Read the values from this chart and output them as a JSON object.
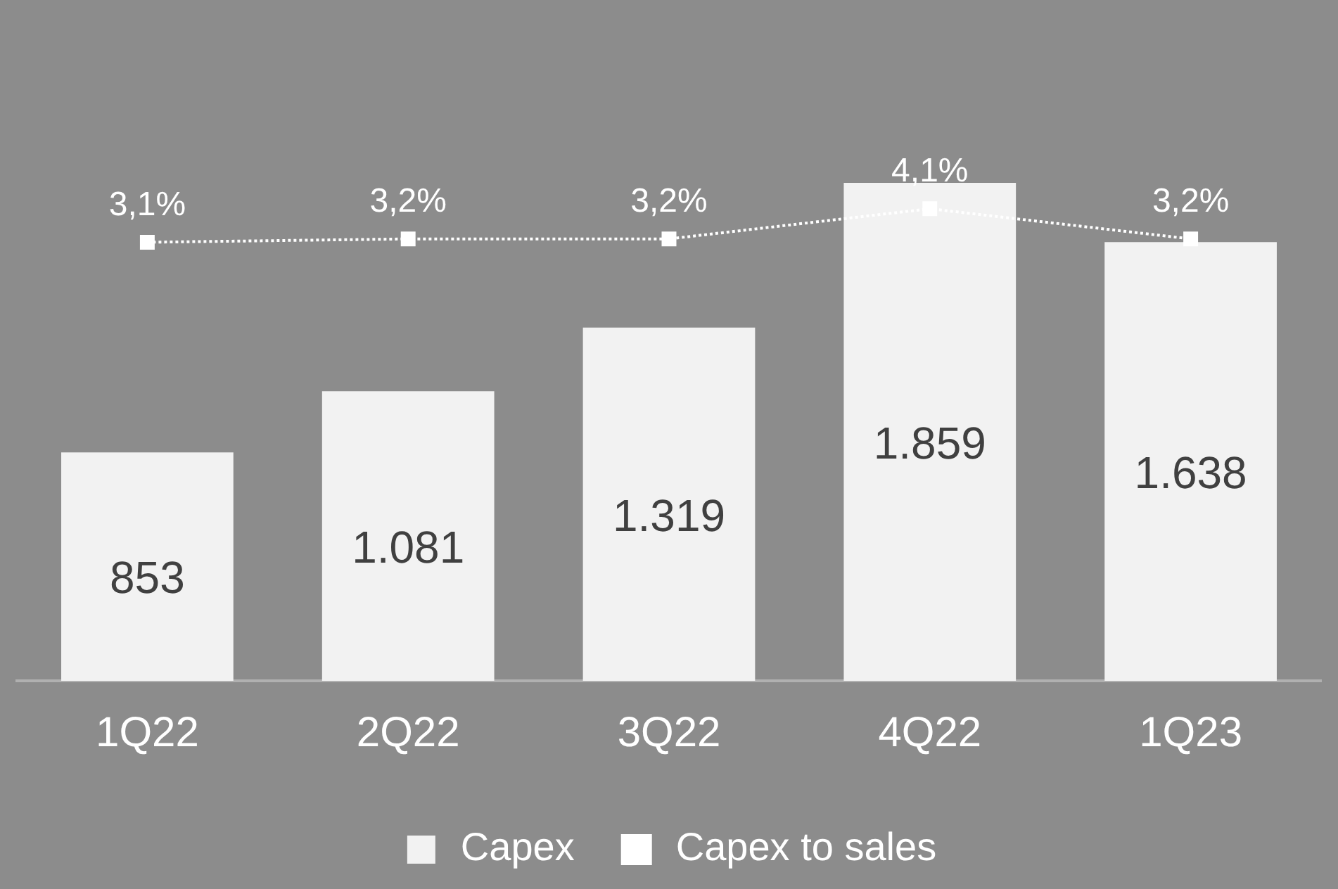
{
  "chart_data": {
    "type": "bar",
    "categories": [
      "1Q22",
      "2Q22",
      "3Q22",
      "4Q22",
      "1Q23"
    ],
    "series": [
      {
        "name": "Capex",
        "color": "#f2f2f2",
        "values": [
          853,
          1081,
          1319,
          1859,
          1638
        ],
        "value_labels": [
          "853",
          "1.081",
          "1.319",
          "1.859",
          "1.638"
        ]
      },
      {
        "name": "Capex to sales",
        "type": "line",
        "axis": "y2",
        "color": "#ffffff",
        "values": [
          3.1,
          3.2,
          3.2,
          4.1,
          3.2
        ],
        "value_labels": [
          "3,1%",
          "3,2%",
          "3,2%",
          "4,1%",
          "3,2%"
        ],
        "marker": "square",
        "line_style": "dotted"
      }
    ],
    "grid": false,
    "legend": "bottom"
  }
}
